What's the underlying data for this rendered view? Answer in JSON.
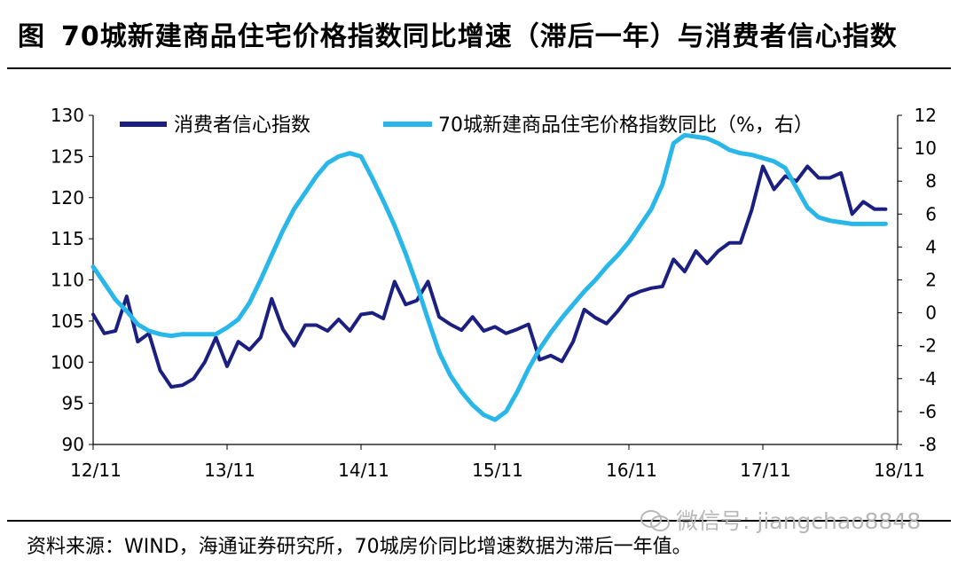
{
  "header": {
    "tag": "图",
    "title": "70城新建商品住宅价格指数同比增速（滞后一年）与消费者信心指数"
  },
  "source": "资料来源：WIND，海通证券研究所，70城房价同比增速数据为滞后一年值。",
  "watermark": "微信号: jiangchao8848",
  "chart_data": {
    "type": "line",
    "x_ticks": [
      "12/11",
      "13/11",
      "14/11",
      "15/11",
      "16/11",
      "17/11",
      "18/11"
    ],
    "x_range": [
      0,
      72
    ],
    "y_left": {
      "min": 90,
      "max": 130,
      "ticks": [
        90,
        95,
        100,
        105,
        110,
        115,
        120,
        125,
        130
      ]
    },
    "y_right": {
      "min": -8,
      "max": 12,
      "ticks": [
        -8,
        -6,
        -4,
        -2,
        0,
        2,
        4,
        6,
        8,
        10,
        12
      ]
    },
    "legend": "top",
    "series": [
      {
        "name": "消费者信心指数",
        "axis": "left",
        "color": "#1b1f80",
        "x": [
          0,
          1,
          2,
          3,
          4,
          5,
          6,
          7,
          8,
          9,
          10,
          11,
          12,
          13,
          14,
          15,
          16,
          17,
          18,
          19,
          20,
          21,
          22,
          23,
          24,
          25,
          26,
          27,
          28,
          29,
          30,
          31,
          32,
          33,
          34,
          35,
          36,
          37,
          38,
          39,
          40,
          41,
          42,
          43,
          44,
          45,
          46,
          47,
          48,
          49,
          50,
          51,
          52,
          53,
          54,
          55,
          56,
          57,
          58,
          59,
          60,
          61,
          62,
          63,
          64,
          65,
          66,
          67,
          68,
          69,
          70,
          71
        ],
        "values": [
          105.8,
          103.5,
          103.8,
          108.0,
          102.5,
          103.5,
          99.0,
          97.0,
          97.2,
          98.0,
          100.0,
          103.0,
          99.5,
          102.5,
          101.5,
          103.0,
          107.7,
          104.0,
          102.0,
          104.5,
          104.5,
          103.8,
          105.2,
          103.8,
          105.8,
          106.0,
          105.3,
          109.8,
          107.0,
          107.5,
          109.8,
          105.5,
          104.6,
          103.9,
          105.5,
          103.8,
          104.3,
          103.5,
          104.0,
          104.6,
          100.3,
          100.8,
          100.1,
          102.5,
          106.4,
          105.4,
          104.7,
          106.2,
          108.0,
          108.6,
          109.0,
          109.2,
          112.5,
          111.0,
          113.5,
          112.0,
          113.5,
          114.5,
          114.5,
          118.5,
          123.8,
          121.0,
          122.6,
          122.0,
          123.8,
          122.4,
          122.4,
          123.0,
          118.0,
          119.5,
          118.6,
          118.6
        ]
      },
      {
        "name": "70城新建商品住宅价格指数同比（%，右）",
        "axis": "right",
        "color": "#29b6e8",
        "x": [
          0,
          1,
          2,
          3,
          4,
          5,
          6,
          7,
          8,
          9,
          10,
          11,
          12,
          13,
          14,
          15,
          16,
          17,
          18,
          19,
          20,
          21,
          22,
          23,
          24,
          25,
          26,
          27,
          28,
          29,
          30,
          31,
          32,
          33,
          34,
          35,
          36,
          37,
          38,
          39,
          40,
          41,
          42,
          43,
          44,
          45,
          46,
          47,
          48,
          49,
          50,
          51,
          52,
          53,
          54,
          55,
          56,
          57,
          58,
          59,
          60,
          61,
          62,
          63,
          64,
          65,
          66,
          67,
          68,
          69,
          70,
          71
        ],
        "values": [
          2.8,
          1.8,
          0.8,
          0.1,
          -0.7,
          -1.1,
          -1.3,
          -1.4,
          -1.3,
          -1.3,
          -1.3,
          -1.3,
          -0.9,
          -0.4,
          0.6,
          2.0,
          3.5,
          5.0,
          6.3,
          7.3,
          8.3,
          9.1,
          9.5,
          9.7,
          9.5,
          8.2,
          6.8,
          5.3,
          3.6,
          1.7,
          -0.4,
          -2.4,
          -3.8,
          -4.8,
          -5.6,
          -6.2,
          -6.5,
          -6.0,
          -4.8,
          -3.4,
          -2.2,
          -1.2,
          -0.3,
          0.5,
          1.3,
          2.0,
          2.8,
          3.5,
          4.3,
          5.3,
          6.3,
          7.8,
          10.3,
          10.8,
          10.7,
          10.6,
          10.3,
          9.9,
          9.7,
          9.6,
          9.4,
          9.2,
          8.8,
          7.6,
          6.4,
          5.8,
          5.6,
          5.5,
          5.4,
          5.4,
          5.4,
          5.4
        ]
      }
    ],
    "grid": false
  }
}
